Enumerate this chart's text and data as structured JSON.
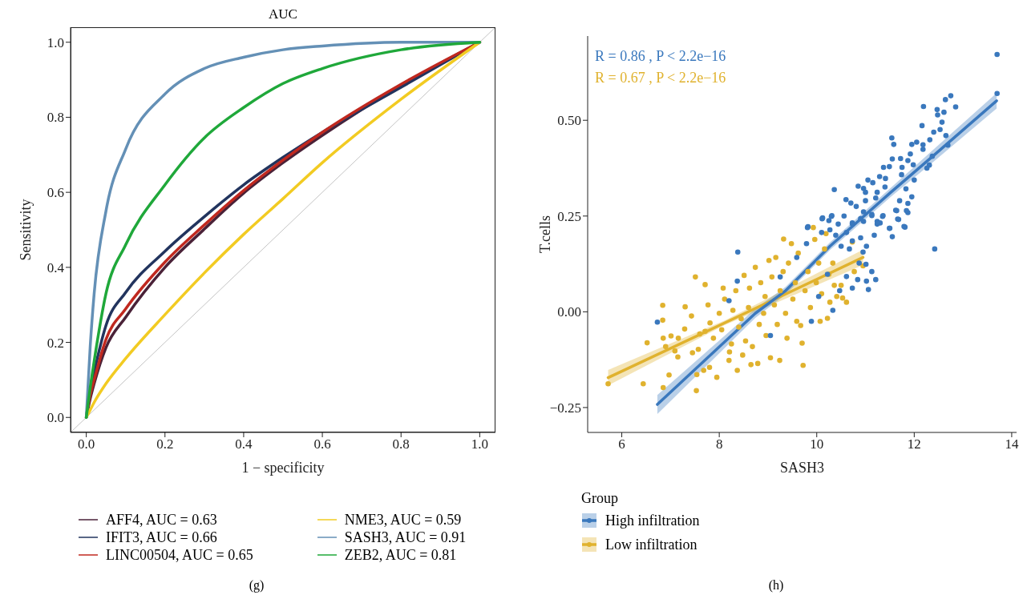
{
  "chart_data": [
    {
      "type": "line",
      "title": "AUC",
      "xlabel": "1 − specificity",
      "ylabel": "Sensitivity",
      "xlim": [
        -0.04,
        1.04
      ],
      "ylim": [
        -0.04,
        1.04
      ],
      "xticks": [
        {
          "value": 0,
          "label": "0.0"
        },
        {
          "value": 0.2,
          "label": "0.2"
        },
        {
          "value": 0.4,
          "label": "0.4"
        },
        {
          "value": 0.6,
          "label": "0.6"
        },
        {
          "value": 0.8,
          "label": "0.8"
        },
        {
          "value": 1,
          "label": "1.0"
        }
      ],
      "yticks": [
        {
          "value": 0,
          "label": "0.0"
        },
        {
          "value": 0.2,
          "label": "0.2"
        },
        {
          "value": 0.4,
          "label": "0.4"
        },
        {
          "value": 0.6,
          "label": "0.6"
        },
        {
          "value": 0.8,
          "label": "0.8"
        },
        {
          "value": 1,
          "label": "1.0"
        }
      ],
      "x": [
        0,
        0.01,
        0.02,
        0.05,
        0.1,
        0.2,
        0.3,
        0.4,
        0.5,
        0.6,
        0.8,
        1
      ],
      "legend": "bottom",
      "line_style": "solid",
      "series": [
        {
          "x": [
            -0.04,
            1.04
          ],
          "values": [
            -0.04,
            1.04
          ],
          "color": "#c4c4c4"
        },
        {
          "name": "AFF4, AUC = 0.63",
          "color": "#4a2238",
          "values": [
            0,
            0.05,
            0.09,
            0.186,
            0.267,
            0.4,
            0.502,
            0.598,
            0.679,
            0.752,
            0.885,
            1.0
          ]
        },
        {
          "name": "IFIT3, AUC = 0.66",
          "color": "#22345e",
          "values": [
            0,
            0.07,
            0.12,
            0.245,
            0.333,
            0.443,
            0.535,
            0.62,
            0.693,
            0.76,
            0.88,
            1.0
          ]
        },
        {
          "name": "LINC00504, AUC = 0.65",
          "color": "#c0281f",
          "values": [
            0,
            0.06,
            0.1,
            0.208,
            0.289,
            0.414,
            0.513,
            0.605,
            0.686,
            0.76,
            0.888,
            1.0
          ]
        },
        {
          "name": "NME3, AUC = 0.59",
          "color": "#f2cb22",
          "values": [
            0,
            0.02,
            0.04,
            0.09,
            0.157,
            0.274,
            0.385,
            0.488,
            0.583,
            0.679,
            0.848,
            1.0
          ]
        },
        {
          "name": "SASH3, AUC = 0.91",
          "color": "#6490b6",
          "values": [
            0,
            0.19,
            0.33,
            0.55,
            0.715,
            0.862,
            0.93,
            0.96,
            0.98,
            0.99,
            1.0,
            1.0
          ]
        },
        {
          "name": "ZEB2, AUC = 0.81",
          "color": "#1fa83a",
          "values": [
            0,
            0.08,
            0.15,
            0.33,
            0.46,
            0.62,
            0.745,
            0.826,
            0.89,
            0.93,
            0.98,
            1.0
          ]
        }
      ],
      "annotations": [
        "(g)"
      ]
    },
    {
      "type": "scatter",
      "xlabel": "SASH3",
      "ylabel": "T.cells",
      "legend_title": "Group",
      "legend": "bottom left",
      "xlim": [
        5.3,
        14.1
      ],
      "ylim": [
        -0.315,
        0.72
      ],
      "xticks": [
        6,
        8,
        10,
        12,
        14
      ],
      "yticks": [
        {
          "value": -0.25,
          "label": "−0.25"
        },
        {
          "value": 0,
          "label": "0.00"
        },
        {
          "value": 0.25,
          "label": "0.25"
        },
        {
          "value": 0.5,
          "label": "0.50"
        }
      ],
      "series": [
        {
          "name": "Low infiltration",
          "color": "#e0b22e",
          "marker": "circle",
          "x": [
            5.72,
            6.44,
            6.52,
            6.84,
            6.84,
            6.85,
            6.85,
            6.97,
            6.9,
            7.01,
            7.09,
            7.15,
            7.16,
            7.29,
            7.3,
            7.43,
            7.45,
            7.51,
            7.53,
            7.54,
            7.57,
            7.6,
            7.68,
            7.71,
            7.71,
            7.77,
            7.8,
            7.81,
            7.88,
            7.95,
            8.0,
            8.05,
            8.08,
            8.11,
            8.2,
            8.21,
            8.25,
            8.28,
            8.34,
            8.37,
            8.4,
            8.45,
            8.48,
            8.51,
            8.54,
            8.6,
            8.62,
            8.65,
            8.68,
            8.74,
            8.79,
            8.82,
            8.85,
            8.91,
            8.94,
            8.96,
            9.02,
            9.05,
            9.08,
            9.13,
            9.16,
            9.19,
            9.24,
            9.25,
            9.31,
            9.32,
            9.36,
            9.39,
            9.42,
            9.48,
            9.51,
            9.56,
            9.59,
            9.62,
            9.67,
            9.7,
            9.72,
            9.76,
            9.82,
            9.87,
            9.93,
            9.96,
            9.99,
            10.04,
            10.07,
            10.1,
            10.16,
            10.19,
            10.22,
            10.25,
            10.27,
            10.33,
            10.36,
            10.41,
            10.5,
            10.53,
            10.61,
            10.73,
            10.77,
            10.95
          ],
          "values": [
            -0.188,
            -0.188,
            -0.081,
            0.017,
            -0.022,
            -0.069,
            -0.198,
            -0.165,
            -0.091,
            -0.063,
            -0.102,
            -0.118,
            -0.069,
            -0.045,
            0.013,
            -0.011,
            -0.107,
            0.091,
            -0.206,
            -0.164,
            -0.098,
            -0.058,
            -0.153,
            0.071,
            -0.051,
            0.018,
            -0.145,
            -0.029,
            -0.069,
            -0.171,
            -0.004,
            -0.047,
            0.062,
            0.033,
            -0.127,
            -0.105,
            -0.084,
            0.004,
            0.055,
            -0.153,
            -0.04,
            -0.018,
            -0.113,
            0.095,
            -0.076,
            0.011,
            0.062,
            -0.138,
            -0.091,
            0.116,
            -0.135,
            -0.033,
            0.076,
            -0.004,
            0.04,
            -0.062,
            0.134,
            -0.12,
            0.091,
            0.018,
            0.142,
            -0.033,
            -0.127,
            0.055,
            0.105,
            0.19,
            -0.004,
            -0.069,
            0.127,
            0.178,
            0.033,
            0.076,
            -0.025,
            0.153,
            -0.036,
            -0.082,
            -0.14,
            0.055,
            0.105,
            0.011,
            0.22,
            0.189,
            0.076,
            0.127,
            -0.025,
            0.047,
            0.164,
            0.204,
            -0.017,
            0.098,
            0.025,
            0.127,
            0.069,
            0.04,
            0.069,
            0.036,
            0.025,
            0.182,
            0.105,
            0.12
          ]
        },
        {
          "name": "High infiltration",
          "color": "#3a78bd",
          "marker": "circle",
          "x": [
            13.7,
            13.7,
            12.75,
            12.64,
            12.85,
            12.19,
            12.47,
            12.61,
            12.48,
            12.57,
            12.16,
            12.53,
            12.4,
            12.65,
            11.54,
            11.58,
            12.05,
            12.18,
            12.32,
            12.18,
            11.95,
            12.69,
            11.92,
            12.37,
            11.55,
            11.72,
            11.87,
            11.98,
            12.31,
            12.26,
            11.37,
            11.49,
            11.75,
            11.74,
            12.0,
            11.83,
            11.05,
            11.29,
            11.41,
            11.15,
            11.4,
            10.85,
            10.96,
            10.36,
            11.24,
            11.0,
            11.95,
            10.6,
            10.7,
            11.7,
            11.87,
            11.0,
            11.21,
            10.81,
            10.96,
            11.64,
            11.87,
            11.35,
            11.68,
            11.81,
            11.49,
            10.3,
            10.11,
            10.56,
            10.25,
            11.24,
            11.3,
            9.81,
            10.73,
            10.96,
            11.13,
            12.42,
            11.62,
            11.84,
            11.66,
            11.79,
            11.5,
            11.55,
            10.12,
            10.31,
            11.13,
            11.36,
            11.24,
            11.18,
            11.02,
            11.13,
            11.21,
            11.02,
            11.06,
            10.84,
            10.61,
            10.73,
            10.87,
            11.01,
            10.95,
            10.67,
            10.73,
            10.9,
            10.5,
            10.39,
            10.61,
            10.27,
            10.44,
            10.73,
            10.9,
            9.82,
            9.79,
            10.1,
            10.33,
            9.89,
            8.38,
            8.37,
            8.2,
            6.73,
            9.05,
            10.47,
            9.59,
            10.04,
            9.25,
            10.22
          ],
          "values": [
            0.672,
            0.57,
            0.564,
            0.554,
            0.535,
            0.536,
            0.528,
            0.521,
            0.514,
            0.495,
            0.486,
            0.476,
            0.469,
            0.46,
            0.454,
            0.437,
            0.443,
            0.436,
            0.449,
            0.424,
            0.437,
            0.435,
            0.412,
            0.406,
            0.399,
            0.4,
            0.395,
            0.384,
            0.383,
            0.375,
            0.377,
            0.379,
            0.377,
            0.358,
            0.344,
            0.321,
            0.344,
            0.353,
            0.348,
            0.337,
            0.326,
            0.328,
            0.322,
            0.319,
            0.312,
            0.312,
            0.3,
            0.293,
            0.284,
            0.29,
            0.283,
            0.29,
            0.297,
            0.275,
            0.261,
            0.264,
            0.259,
            0.249,
            0.241,
            0.221,
            0.218,
            0.249,
            0.243,
            0.25,
            0.238,
            0.236,
            0.232,
            0.22,
            0.232,
            0.236,
            0.254,
            0.164,
            0.265,
            0.264,
            0.242,
            0.223,
            0.218,
            0.196,
            0.245,
            0.251,
            0.251,
            0.251,
            0.229,
            0.2,
            0.171,
            0.105,
            0.084,
            0.08,
            0.058,
            0.084,
            0.092,
            0.062,
            0.127,
            0.124,
            0.156,
            0.164,
            0.185,
            0.193,
            0.171,
            0.2,
            0.207,
            0.214,
            0.229,
            0.229,
            0.243,
            0.222,
            0.178,
            0.207,
            0.004,
            -0.025,
            0.156,
            0.08,
            0.029,
            -0.027,
            -0.062,
            0.055,
            0.142,
            0.04,
            0.091,
            0.098
          ]
        },
        {
          "type": "line",
          "color": "#e0b22e",
          "x": [
            5.72,
            8.11,
            10.95
          ],
          "values": [
            -0.172,
            -0.029,
            0.142
          ],
          "lower": [
            -0.192,
            -0.035,
            0.122
          ],
          "upper": [
            -0.152,
            -0.023,
            0.162
          ]
        },
        {
          "type": "line",
          "color": "#3a78bd",
          "x": [
            6.73,
            8.74,
            9.36,
            10.27,
            11.52,
            12.38,
            13.69
          ],
          "values": [
            -0.242,
            -0.004,
            0.055,
            0.171,
            0.312,
            0.406,
            0.551
          ],
          "lower": [
            -0.267,
            -0.016,
            0.045,
            0.161,
            0.3,
            0.39,
            0.531
          ],
          "upper": [
            -0.217,
            0.008,
            0.065,
            0.181,
            0.324,
            0.422,
            0.571
          ]
        }
      ],
      "annotations": [
        "R = 0.86 , P < 2.2e−16",
        "R = 0.67 , P < 2.2e−16",
        "(h)"
      ]
    }
  ]
}
